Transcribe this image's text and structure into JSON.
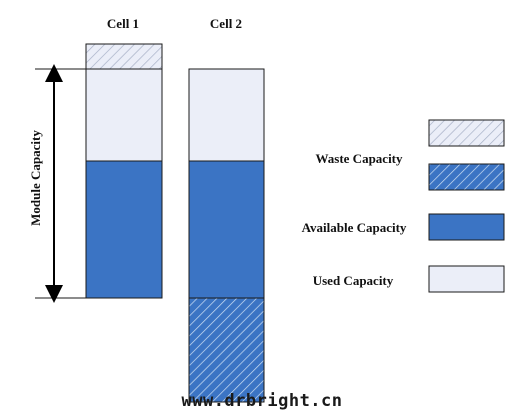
{
  "cells": [
    {
      "title": "Cell 1",
      "segments": [
        "waste-light",
        "used",
        "available"
      ]
    },
    {
      "title": "Cell 2",
      "segments": [
        "used",
        "available",
        "waste-dark"
      ]
    }
  ],
  "axis": {
    "label": "Module Capacity"
  },
  "legend": {
    "waste": "Waste Capacity",
    "available": "Available Capacity",
    "used": "Used Capacity"
  },
  "watermark": "www.drbright.cn",
  "colors": {
    "available": "#3B74C4",
    "used": "#EBEEF8",
    "waste_light": "#EBEEF8",
    "waste_dark": "#3B74C4",
    "hatch_light": "#A7B0C6",
    "hatch_dark": "#CFE0F4",
    "stroke": "#1A1A1A"
  }
}
